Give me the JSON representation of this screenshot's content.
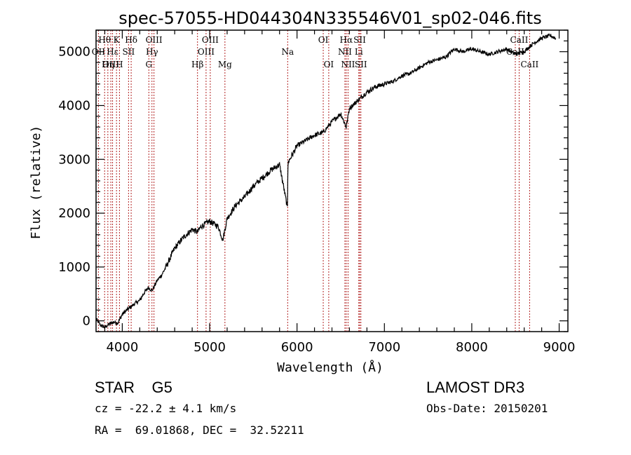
{
  "chart_data": {
    "type": "line",
    "title": "spec-57055-HD044304N335546V01_sp02-046.fits",
    "xlabel": "Wavelength (Å)",
    "ylabel": "Flux (relative)",
    "xlim": [
      3700,
      9100
    ],
    "ylim": [
      -200,
      5400
    ],
    "xticks": [
      4000,
      5000,
      6000,
      7000,
      8000,
      9000
    ],
    "yticks": [
      0,
      1000,
      2000,
      3000,
      4000,
      5000
    ],
    "grid": false,
    "series": [
      {
        "name": "spectrum",
        "x": [
          3700,
          3750,
          3800,
          3850,
          3900,
          3950,
          4000,
          4050,
          4100,
          4150,
          4200,
          4250,
          4300,
          4340,
          4400,
          4450,
          4500,
          4600,
          4700,
          4800,
          4861,
          4900,
          5000,
          5100,
          5150,
          5200,
          5300,
          5400,
          5500,
          5600,
          5700,
          5800,
          5890,
          5895,
          5900,
          6000,
          6100,
          6200,
          6300,
          6400,
          6500,
          6563,
          6600,
          6700,
          6800,
          6900,
          7000,
          7100,
          7200,
          7300,
          7400,
          7500,
          7600,
          7700,
          7800,
          7900,
          8000,
          8100,
          8200,
          8300,
          8400,
          8500,
          8600,
          8700,
          8800,
          8900,
          8960
        ],
        "y": [
          40,
          -80,
          -120,
          -60,
          -20,
          -40,
          120,
          200,
          260,
          330,
          380,
          520,
          620,
          560,
          750,
          850,
          1000,
          1350,
          1550,
          1700,
          1650,
          1750,
          1850,
          1750,
          1500,
          1900,
          2150,
          2300,
          2500,
          2650,
          2800,
          2900,
          2100,
          2800,
          2950,
          3250,
          3350,
          3450,
          3500,
          3700,
          3850,
          3600,
          3950,
          4100,
          4250,
          4350,
          4400,
          4450,
          4550,
          4600,
          4700,
          4800,
          4850,
          4900,
          5050,
          5000,
          5050,
          5000,
          4950,
          5000,
          5050,
          4950,
          5000,
          5150,
          5250,
          5300,
          5250
        ]
      }
    ],
    "line_labels": [
      {
        "text": "Hθ",
        "x": 3798,
        "row": 1
      },
      {
        "text": "K",
        "x": 3934,
        "row": 1
      },
      {
        "text": "Hδ",
        "x": 4102,
        "row": 1
      },
      {
        "text": "OII",
        "x": 3727,
        "row": 2
      },
      {
        "text": "Hε",
        "x": 3889,
        "row": 2
      },
      {
        "text": "SII",
        "x": 4072,
        "row": 2
      },
      {
        "text": "OIII",
        "x": 3869,
        "row": 3
      },
      {
        "text": "Hη",
        "x": 3835,
        "row": 3
      },
      {
        "text": "H",
        "x": 3968,
        "row": 3
      },
      {
        "text": "OIII",
        "x": 4363,
        "row": 1
      },
      {
        "text": "Hγ",
        "x": 4340,
        "row": 2
      },
      {
        "text": "G",
        "x": 4304,
        "row": 3
      },
      {
        "text": "OIII",
        "x": 5007,
        "row": 1
      },
      {
        "text": "OIII",
        "x": 4959,
        "row": 2
      },
      {
        "text": "Hβ",
        "x": 4861,
        "row": 3
      },
      {
        "text": "Mg",
        "x": 5175,
        "row": 3
      },
      {
        "text": "Na",
        "x": 5893,
        "row": 2
      },
      {
        "text": "OI",
        "x": 6300,
        "row": 1
      },
      {
        "text": "OI",
        "x": 6363,
        "row": 3
      },
      {
        "text": "Hα",
        "x": 6563,
        "row": 1
      },
      {
        "text": "SII",
        "x": 6717,
        "row": 1
      },
      {
        "text": "NII",
        "x": 6548,
        "row": 2
      },
      {
        "text": "Li",
        "x": 6707,
        "row": 2
      },
      {
        "text": "NII",
        "x": 6584,
        "row": 3
      },
      {
        "text": "SII",
        "x": 6731,
        "row": 3
      },
      {
        "text": "CaII",
        "x": 8542,
        "row": 1
      },
      {
        "text": "CaII",
        "x": 8498,
        "row": 2
      },
      {
        "text": "CaII",
        "x": 8662,
        "row": 3
      }
    ],
    "lines": [
      3727,
      3798,
      3835,
      3869,
      3889,
      3934,
      3968,
      4072,
      4102,
      4304,
      4340,
      4363,
      4861,
      4959,
      5007,
      5175,
      5893,
      6300,
      6363,
      6548,
      6563,
      6584,
      6707,
      6717,
      6731,
      8498,
      8542,
      8662
    ]
  },
  "info": {
    "class_line": "STAR    G5",
    "survey": "LAMOST DR3",
    "cz": "cz = -22.2 ± 4.1 km/s",
    "obs_date": "Obs-Date: 20150201",
    "radec": "RA =  69.01868, DEC =  32.52211"
  },
  "colors": {
    "spectrum": "#000000",
    "marker_lines": "#b22222",
    "frame": "#000000"
  }
}
